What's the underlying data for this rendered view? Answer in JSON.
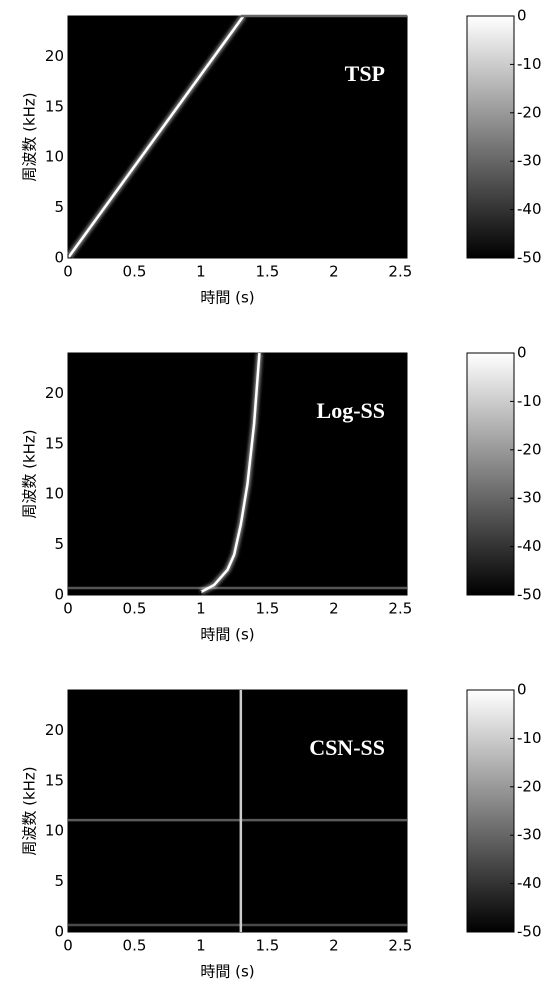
{
  "chart_data": [
    {
      "type": "heatmap",
      "annotation": "TSP",
      "xlabel": "時間 (s)",
      "ylabel": "周波数 (kHz)",
      "xlim": [
        0,
        2.55
      ],
      "xticks": [
        0,
        0.5,
        1,
        1.5,
        2,
        2.5
      ],
      "ylim": [
        0,
        24
      ],
      "yticks": [
        0,
        5,
        10,
        15,
        20
      ],
      "clim": [
        -50,
        0
      ],
      "cticks": [
        0,
        -10,
        -20,
        -30,
        -40,
        -50
      ],
      "series": [
        {
          "color": "#ffffff",
          "x": [
            0,
            1.32
          ],
          "values": [
            0,
            24
          ]
        },
        {
          "color": "#666666",
          "x": [
            1.3,
            2.55
          ],
          "values": [
            24,
            24
          ]
        }
      ]
    },
    {
      "type": "heatmap",
      "annotation": "Log-SS",
      "xlabel": "時間 (s)",
      "ylabel": "周波数 (kHz)",
      "xlim": [
        0,
        2.55
      ],
      "xticks": [
        0,
        0.5,
        1,
        1.5,
        2,
        2.5
      ],
      "ylim": [
        0,
        24
      ],
      "yticks": [
        0,
        5,
        10,
        15,
        20
      ],
      "clim": [
        -50,
        0
      ],
      "cticks": [
        0,
        -10,
        -20,
        -30,
        -40,
        -50
      ],
      "series": [
        {
          "color": "#555555",
          "x": [
            0,
            2.55
          ],
          "values": [
            0.7,
            0.7
          ]
        },
        {
          "color": "#ffffff",
          "x": [
            1.0,
            1.1,
            1.2,
            1.25,
            1.3,
            1.35,
            1.4,
            1.44
          ],
          "values": [
            0.3,
            1,
            2.5,
            4,
            7,
            11,
            17,
            24
          ]
        }
      ]
    },
    {
      "type": "heatmap",
      "annotation": "CSN-SS",
      "xlabel": "時間 (s)",
      "ylabel": "周波数 (kHz)",
      "xlim": [
        0,
        2.55
      ],
      "xticks": [
        0,
        0.5,
        1,
        1.5,
        2,
        2.5
      ],
      "ylim": [
        0,
        24
      ],
      "yticks": [
        0,
        5,
        10,
        15,
        20
      ],
      "clim": [
        -50,
        0
      ],
      "cticks": [
        0,
        -10,
        -20,
        -30,
        -40,
        -50
      ],
      "series": [
        {
          "color": "#4a4a4a",
          "x": [
            0,
            2.55
          ],
          "values": [
            0.7,
            0.7
          ]
        },
        {
          "color": "#5a5a5a",
          "x": [
            0,
            2.55
          ],
          "values": [
            11.1,
            11.1
          ]
        },
        {
          "color": "#cccccc",
          "x": [
            1.3,
            1.3
          ],
          "values": [
            0,
            24
          ]
        }
      ]
    }
  ]
}
